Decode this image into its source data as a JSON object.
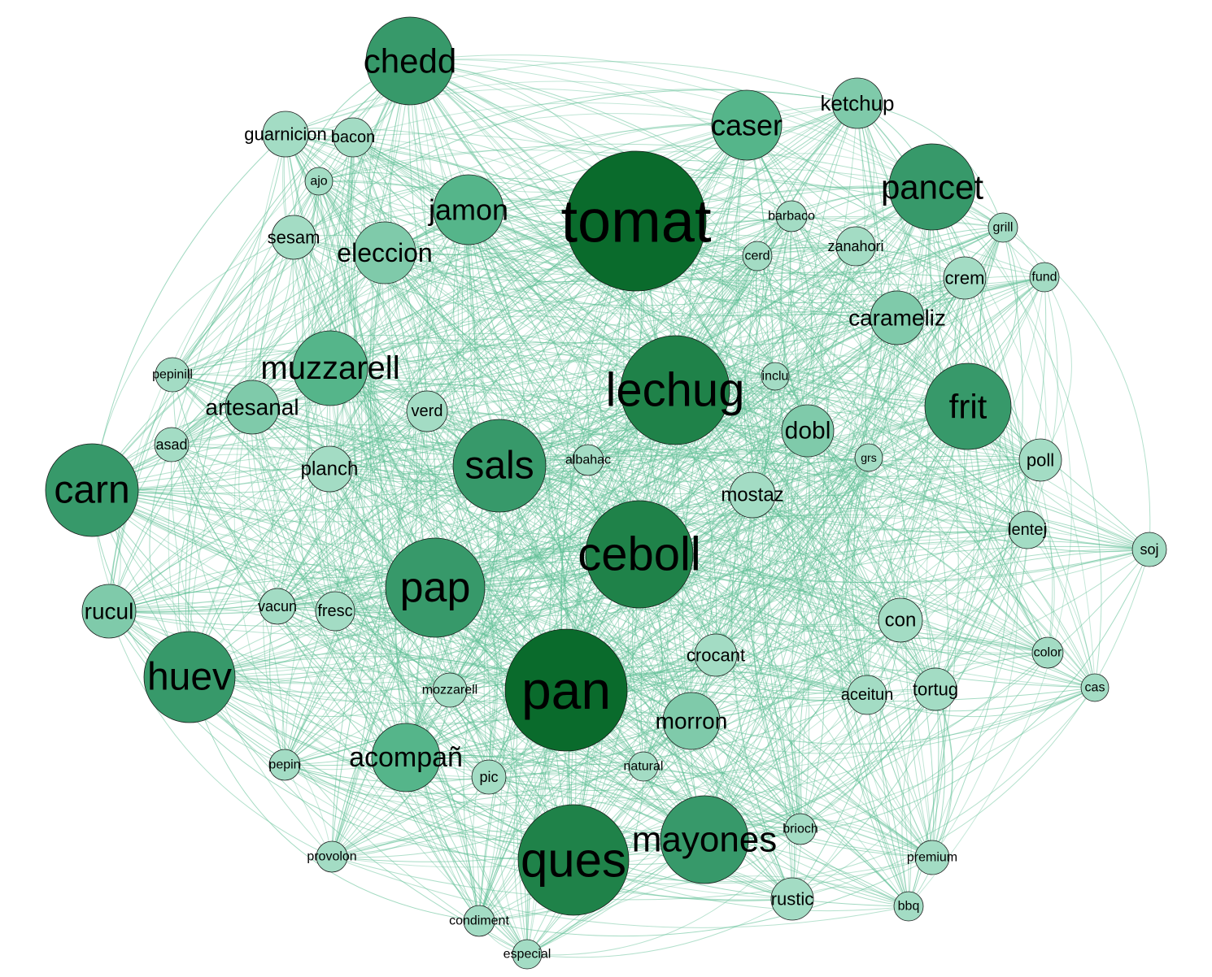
{
  "diagram": {
    "type": "co-occurrence-network",
    "colors": {
      "edge": "#5fbf95",
      "node_level_1": "#a3dcc4",
      "node_level_2": "#7fcaaa",
      "node_level_3": "#55b58a",
      "node_level_4": "#37996a",
      "node_level_5": "#1f8249",
      "node_level_6": "#0a6b2c",
      "node_stroke": "#1a1a1a",
      "label": "#000000"
    },
    "nodes": [
      {
        "id": "tomat",
        "label": "tomat",
        "weight": 6
      },
      {
        "id": "pan",
        "label": "pan",
        "weight": 6
      },
      {
        "id": "ques",
        "label": "ques",
        "weight": 5
      },
      {
        "id": "lechug",
        "label": "lechug",
        "weight": 5
      },
      {
        "id": "ceboll",
        "label": "ceboll",
        "weight": 5
      },
      {
        "id": "pap",
        "label": "pap",
        "weight": 4
      },
      {
        "id": "sals",
        "label": "sals",
        "weight": 4
      },
      {
        "id": "carn",
        "label": "carn",
        "weight": 4
      },
      {
        "id": "huev",
        "label": "huev",
        "weight": 4
      },
      {
        "id": "chedd",
        "label": "chedd",
        "weight": 4
      },
      {
        "id": "pancet",
        "label": "pancet",
        "weight": 4
      },
      {
        "id": "frit",
        "label": "frit",
        "weight": 4
      },
      {
        "id": "mayones",
        "label": "mayones",
        "weight": 4
      },
      {
        "id": "muzzarell",
        "label": "muzzarell",
        "weight": 3
      },
      {
        "id": "caser",
        "label": "caser",
        "weight": 3
      },
      {
        "id": "jamon",
        "label": "jamon",
        "weight": 3
      },
      {
        "id": "acompan",
        "label": "acompañ",
        "weight": 3
      },
      {
        "id": "eleccion",
        "label": "eleccion",
        "weight": 2
      },
      {
        "id": "morron",
        "label": "morron",
        "weight": 2
      },
      {
        "id": "carameliz",
        "label": "carameliz",
        "weight": 2
      },
      {
        "id": "ketchup",
        "label": "ketchup",
        "weight": 2
      },
      {
        "id": "artesanal",
        "label": "artesanal",
        "weight": 2
      },
      {
        "id": "dobl",
        "label": "dobl",
        "weight": 2
      },
      {
        "id": "rucul",
        "label": "rucul",
        "weight": 2
      },
      {
        "id": "mostaz",
        "label": "mostaz",
        "weight": 1
      },
      {
        "id": "planch",
        "label": "planch",
        "weight": 1
      },
      {
        "id": "con",
        "label": "con",
        "weight": 1
      },
      {
        "id": "crocant",
        "label": "crocant",
        "weight": 1
      },
      {
        "id": "guarnicion",
        "label": "guarnicion",
        "weight": 1
      },
      {
        "id": "sesam",
        "label": "sesam",
        "weight": 1
      },
      {
        "id": "rustic",
        "label": "rustic",
        "weight": 1
      },
      {
        "id": "tortug",
        "label": "tortug",
        "weight": 1
      },
      {
        "id": "aceitun",
        "label": "aceitun",
        "weight": 1
      },
      {
        "id": "crem",
        "label": "crem",
        "weight": 1
      },
      {
        "id": "zanahori",
        "label": "zanahori",
        "weight": 1
      },
      {
        "id": "poll",
        "label": "poll",
        "weight": 1
      },
      {
        "id": "lentej",
        "label": "lentej",
        "weight": 1
      },
      {
        "id": "bacon",
        "label": "bacon",
        "weight": 1
      },
      {
        "id": "fresc",
        "label": "fresc",
        "weight": 1
      },
      {
        "id": "vacun",
        "label": "vacun",
        "weight": 1
      },
      {
        "id": "verd",
        "label": "verd",
        "weight": 1
      },
      {
        "id": "mozzarell",
        "label": "mozzarell",
        "weight": 1
      },
      {
        "id": "premium",
        "label": "premium",
        "weight": 1
      },
      {
        "id": "pic",
        "label": "pic",
        "weight": 1
      },
      {
        "id": "asad",
        "label": "asad",
        "weight": 1
      },
      {
        "id": "pepinill",
        "label": "pepinill",
        "weight": 1
      },
      {
        "id": "albahac",
        "label": "albahac",
        "weight": 1
      },
      {
        "id": "barbaco",
        "label": "barbaco",
        "weight": 1
      },
      {
        "id": "natural",
        "label": "natural",
        "weight": 1
      },
      {
        "id": "pepin",
        "label": "pepin",
        "weight": 1
      },
      {
        "id": "provolon",
        "label": "provolon",
        "weight": 1
      },
      {
        "id": "condiment",
        "label": "condiment",
        "weight": 1
      },
      {
        "id": "especial",
        "label": "especial",
        "weight": 1
      },
      {
        "id": "brioch",
        "label": "brioch",
        "weight": 1
      },
      {
        "id": "bbq",
        "label": "bbq",
        "weight": 1
      },
      {
        "id": "grill",
        "label": "grill",
        "weight": 1
      },
      {
        "id": "fund",
        "label": "fund",
        "weight": 1
      },
      {
        "id": "soj",
        "label": "soj",
        "weight": 1
      },
      {
        "id": "color",
        "label": "color",
        "weight": 1
      },
      {
        "id": "cas",
        "label": "cas",
        "weight": 1
      },
      {
        "id": "ajo",
        "label": "ajo",
        "weight": 1
      },
      {
        "id": "cerd",
        "label": "cerd",
        "weight": 1
      },
      {
        "id": "inclu",
        "label": "inclu",
        "weight": 1
      },
      {
        "id": "grs",
        "label": "grs",
        "weight": 1
      }
    ]
  }
}
